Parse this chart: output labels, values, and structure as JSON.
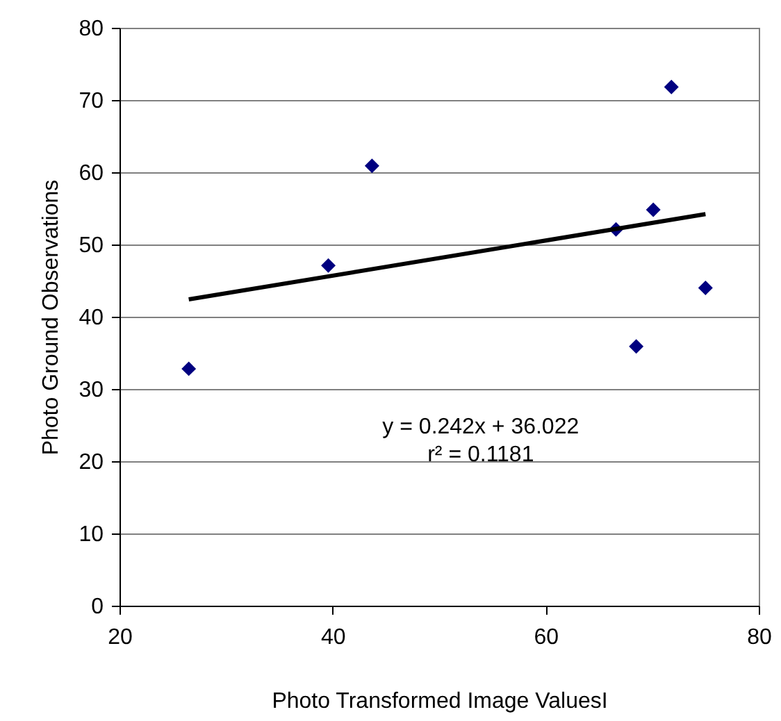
{
  "chart_data": {
    "type": "scatter",
    "xlabel": "Photo Transformed Image ValuesI",
    "ylabel": "Photo Ground Observations",
    "xlim": [
      20,
      80
    ],
    "xticks": [
      20,
      40,
      60,
      80
    ],
    "ylim": [
      0,
      80
    ],
    "yticks": [
      0,
      10,
      20,
      30,
      40,
      50,
      60,
      70,
      80
    ],
    "grid": "y",
    "series": [
      {
        "marker": "diamond",
        "color": "#000080",
        "x": [
          26.5,
          39.6,
          43.7,
          66.6,
          68.5,
          70.1,
          71.8,
          75.0
        ],
        "values": [
          32.8,
          47.1,
          60.9,
          52.1,
          35.9,
          54.8,
          71.8,
          44.0
        ]
      },
      {
        "type": "line",
        "color": "#000000",
        "line_style": "solid",
        "x": [
          26.5,
          75.0
        ],
        "values": [
          42.4,
          54.2
        ]
      }
    ],
    "annotations": [
      "y = 0.242x + 36.022",
      "r² = 0.1181"
    ]
  }
}
